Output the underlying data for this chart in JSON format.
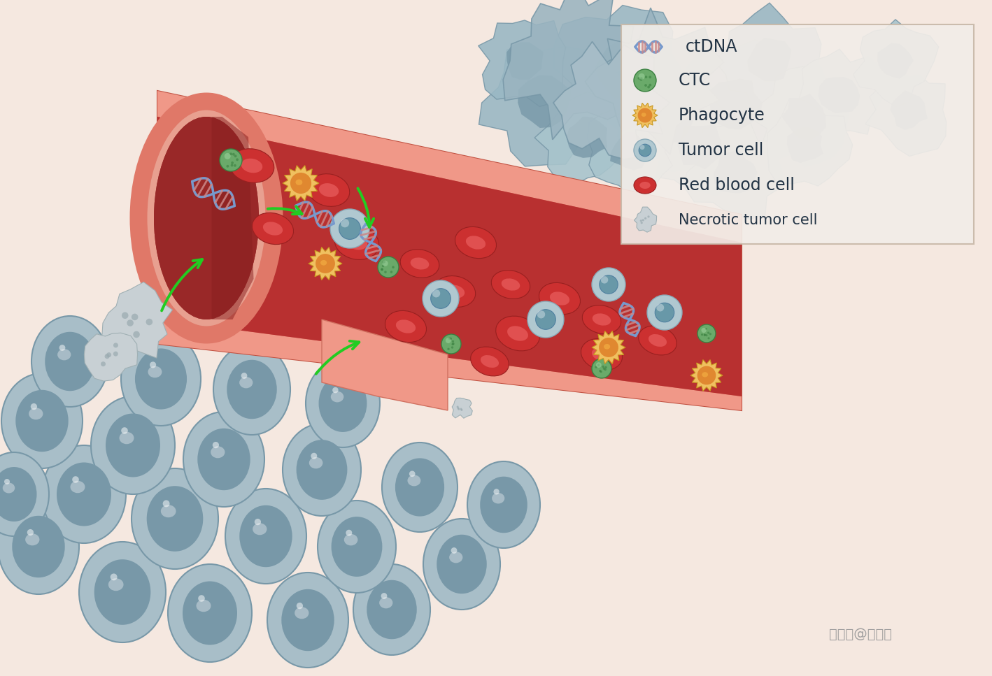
{
  "bg_color": "#f5e8e0",
  "legend_items": [
    "ctDNA",
    "CTC",
    "Phagocyte",
    "Tumor cell",
    "Red blood cell",
    "Necrotic tumor cell"
  ],
  "watermark": "搜狐号@基因狐",
  "vessel_outer_color": "#e07060",
  "vessel_wall_color": "#d96858",
  "vessel_inner_color": "#b83030",
  "vessel_top_wall": "#f09080",
  "vessel_shadow": "#a82828",
  "rbc_color": "#cc3030",
  "rbc_inner": "#e05050",
  "ctc_color": "#6aaa6a",
  "ctc_dark": "#3a8840",
  "phago_outer": "#f0c060",
  "phago_inner": "#e08830",
  "tumor_color": "#a8c0c8",
  "tumor_inner": "#6898a8",
  "necrotic_color": "#b8c4c8",
  "large_rbc_color": "#a0b8c0",
  "large_rbc_inner": "#6898a8",
  "dna_color1": "#7799cc",
  "dna_color2": "#cc8888",
  "arrow_color": "#22cc22"
}
